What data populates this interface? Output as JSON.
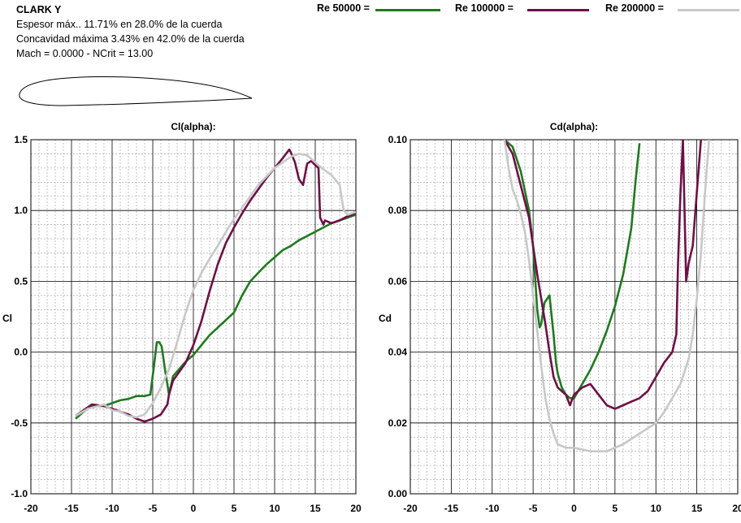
{
  "info": {
    "title": "CLARK Y",
    "line1": "Espesor máx..  11.71% en 28.0%  de la cuerda",
    "line2": "Concavidad máxima 3.43% en 42.0% de la cuerda",
    "line3": "Mach = 0.0000 - NCrit = 13.00"
  },
  "legend": [
    {
      "label": "Re 50000 =",
      "color": "#1f7a1f"
    },
    {
      "label": "Re 100000 =",
      "color": "#6e1046"
    },
    {
      "label": "Re 200000 =",
      "color": "#c8c8c8"
    }
  ],
  "chart_data": [
    {
      "type": "line",
      "title": "Cl(alpha):",
      "xlabel": "",
      "ylabel": "Cl",
      "xlim": [
        -20,
        20
      ],
      "ylim": [
        -1.0,
        1.5
      ],
      "xticks": [
        "-20",
        "-15",
        "-10",
        "-5",
        "0",
        "5",
        "10",
        "15",
        "20"
      ],
      "yticks": [
        "1.5",
        "1.0",
        "0.5",
        "0.0",
        "-0.5",
        "-1.0"
      ],
      "yticks_values": [
        1.5,
        1.0,
        0.5,
        0.0,
        -0.5,
        -1.0
      ],
      "grid": true,
      "series": [
        {
          "name": "Re 50000",
          "color": "#1f7a1f",
          "x": [
            -14.5,
            -13.5,
            -12.5,
            -11,
            -10,
            -9,
            -8,
            -7,
            -6,
            -5.3,
            -4.9,
            -4.5,
            -4.2,
            -3.9,
            -3.5,
            -3,
            -2.5,
            -1,
            0,
            2,
            5,
            6,
            7,
            8,
            9,
            10,
            11,
            12,
            13,
            14,
            15,
            16,
            17,
            18,
            19,
            20
          ],
          "y": [
            -0.47,
            -0.42,
            -0.38,
            -0.38,
            -0.36,
            -0.34,
            -0.33,
            -0.31,
            -0.31,
            -0.3,
            -0.12,
            0.07,
            0.07,
            0.04,
            -0.12,
            -0.3,
            -0.17,
            -0.07,
            -0.02,
            0.12,
            0.28,
            0.4,
            0.5,
            0.56,
            0.62,
            0.67,
            0.72,
            0.75,
            0.79,
            0.82,
            0.85,
            0.88,
            0.91,
            0.93,
            0.95,
            0.97
          ]
        },
        {
          "name": "Re 100000",
          "color": "#6e1046",
          "x": [
            -14.5,
            -13.5,
            -12.5,
            -11,
            -10,
            -9,
            -8,
            -7,
            -6,
            -5,
            -4,
            -3.2,
            -3,
            -2.5,
            -1,
            0,
            1,
            2,
            3,
            4,
            5,
            6,
            7,
            8,
            9,
            10,
            11,
            11.8,
            12,
            12.5,
            13,
            13.5,
            14,
            14.5,
            15,
            15.4,
            15.6,
            16,
            16.2,
            17,
            18,
            19,
            20
          ],
          "y": [
            -0.45,
            -0.41,
            -0.37,
            -0.38,
            -0.4,
            -0.42,
            -0.44,
            -0.47,
            -0.49,
            -0.47,
            -0.44,
            -0.37,
            -0.3,
            -0.2,
            -0.08,
            0.05,
            0.22,
            0.43,
            0.62,
            0.77,
            0.88,
            0.98,
            1.07,
            1.15,
            1.23,
            1.3,
            1.37,
            1.43,
            1.41,
            1.34,
            1.22,
            1.18,
            1.33,
            1.35,
            1.32,
            1.3,
            0.95,
            0.9,
            0.93,
            0.91,
            0.93,
            0.96,
            0.98
          ]
        },
        {
          "name": "Re 200000",
          "color": "#c8c8c8",
          "x": [
            -14.5,
            -13,
            -11,
            -10,
            -9,
            -8,
            -7,
            -6,
            -5,
            -4,
            -3,
            -2,
            -1,
            0,
            1,
            2,
            3,
            4,
            5,
            6,
            7,
            8,
            9,
            10,
            11,
            12,
            13,
            14,
            15,
            16,
            17,
            18,
            18.5,
            19,
            20
          ],
          "y": [
            -0.45,
            -0.4,
            -0.37,
            -0.41,
            -0.42,
            -0.45,
            -0.46,
            -0.44,
            -0.36,
            -0.25,
            -0.12,
            0.07,
            0.27,
            0.44,
            0.56,
            0.66,
            0.75,
            0.85,
            0.94,
            1.02,
            1.1,
            1.18,
            1.24,
            1.3,
            1.34,
            1.38,
            1.4,
            1.39,
            1.34,
            1.29,
            1.25,
            1.18,
            1.0,
            0.97,
            0.99
          ]
        }
      ]
    },
    {
      "type": "line",
      "title": "Cd(alpha):",
      "xlabel": "",
      "ylabel": "Cd",
      "xlim": [
        -20,
        20
      ],
      "ylim": [
        0.0,
        0.1
      ],
      "xticks": [
        "-20",
        "-15",
        "-10",
        "-5",
        "0",
        "5",
        "10",
        "15",
        "20"
      ],
      "yticks": [
        "0.10",
        "0.08",
        "0.06",
        "0.04",
        "0.02",
        "0.00"
      ],
      "yticks_values": [
        0.1,
        0.08,
        0.06,
        0.04,
        0.02,
        0.0
      ],
      "grid": true,
      "series": [
        {
          "name": "Re 50000",
          "color": "#1f7a1f",
          "x": [
            -8.5,
            -7.5,
            -6.5,
            -5.5,
            -5,
            -4.5,
            -4.2,
            -4,
            -3.6,
            -3,
            -2.5,
            -2.2,
            -2,
            -1.5,
            -1,
            -0.5,
            0,
            1,
            2,
            3,
            4,
            5,
            6,
            7,
            7.5,
            8
          ],
          "y": [
            0.1,
            0.098,
            0.091,
            0.08,
            0.07,
            0.052,
            0.047,
            0.048,
            0.054,
            0.056,
            0.045,
            0.037,
            0.034,
            0.03,
            0.028,
            0.027,
            0.027,
            0.031,
            0.035,
            0.04,
            0.046,
            0.053,
            0.062,
            0.075,
            0.088,
            0.099
          ]
        },
        {
          "name": "Re 100000",
          "color": "#6e1046",
          "x": [
            -8.5,
            -7.5,
            -6.5,
            -5.5,
            -5,
            -4.5,
            -4,
            -3.5,
            -3,
            -2.5,
            -2,
            -1.5,
            -1,
            -0.5,
            0,
            0.5,
            1,
            2,
            3,
            4,
            5,
            6,
            7,
            8,
            9,
            10,
            11,
            12,
            12.5,
            12.7,
            13,
            13.3,
            13.7,
            14,
            14.5,
            15,
            15.5
          ],
          "y": [
            0.1,
            0.096,
            0.087,
            0.078,
            0.07,
            0.062,
            0.055,
            0.048,
            0.04,
            0.033,
            0.03,
            0.029,
            0.028,
            0.025,
            0.028,
            0.029,
            0.03,
            0.031,
            0.028,
            0.025,
            0.024,
            0.025,
            0.026,
            0.027,
            0.029,
            0.033,
            0.037,
            0.04,
            0.045,
            0.065,
            0.085,
            0.1,
            0.06,
            0.065,
            0.07,
            0.085,
            0.1
          ]
        },
        {
          "name": "Re 200000",
          "color": "#c8c8c8",
          "x": [
            -8.5,
            -8,
            -7.5,
            -7,
            -6.5,
            -6,
            -5.5,
            -5,
            -4.5,
            -4,
            -3.5,
            -3,
            -2.5,
            -2,
            -1,
            0,
            2,
            4,
            6,
            8,
            10,
            11,
            12,
            13,
            14,
            14.5,
            15,
            15.5,
            16,
            16.5
          ],
          "y": [
            0.1,
            0.092,
            0.086,
            0.083,
            0.079,
            0.074,
            0.066,
            0.056,
            0.046,
            0.036,
            0.027,
            0.021,
            0.017,
            0.014,
            0.013,
            0.013,
            0.012,
            0.012,
            0.014,
            0.017,
            0.02,
            0.023,
            0.027,
            0.031,
            0.038,
            0.045,
            0.055,
            0.068,
            0.085,
            0.1
          ]
        }
      ]
    }
  ]
}
